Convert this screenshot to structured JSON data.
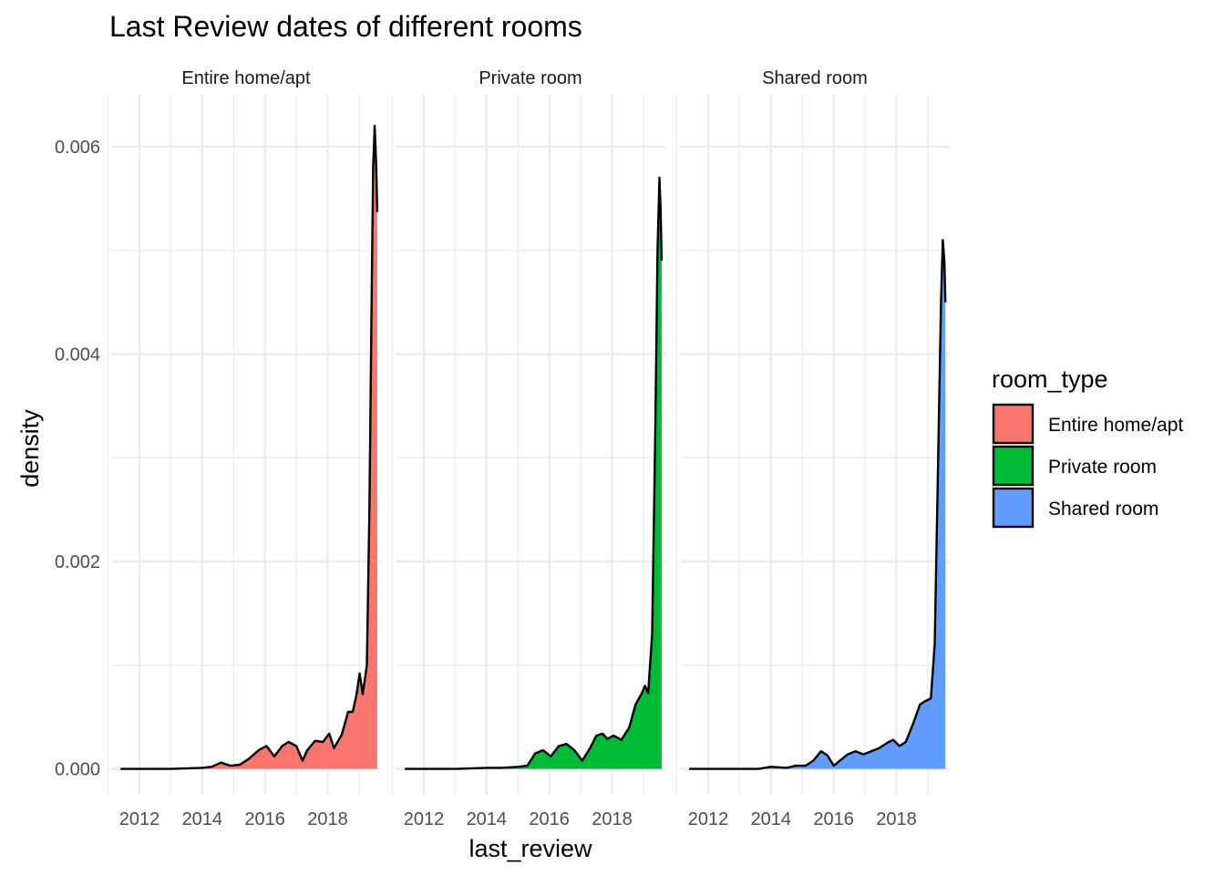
{
  "chart_data": {
    "type": "area",
    "title": "Last Review dates of different rooms",
    "xlabel": "last_review",
    "ylabel": "density",
    "xlim": [
      2011.1,
      2019.7
    ],
    "ylim": [
      -0.00025,
      0.0065
    ],
    "x_ticks": [
      2012,
      2014,
      2016,
      2018
    ],
    "y_ticks": [
      0.0,
      0.002,
      0.004,
      0.006
    ],
    "y_tick_labels": [
      "0.000",
      "0.002",
      "0.004",
      "0.006"
    ],
    "grid": true,
    "legend": {
      "title": "room_type",
      "position": "right",
      "items": [
        "Entire home/apt",
        "Private room",
        "Shared room"
      ]
    },
    "series": [
      {
        "name": "Entire home/apt",
        "color": "#F8766D",
        "x": [
          2011.4,
          2012.0,
          2013.0,
          2014.0,
          2014.3,
          2014.6,
          2014.9,
          2015.2,
          2015.5,
          2015.8,
          2016.05,
          2016.3,
          2016.55,
          2016.75,
          2017.0,
          2017.2,
          2017.35,
          2017.6,
          2017.85,
          2018.05,
          2018.2,
          2018.45,
          2018.65,
          2018.8,
          2018.92,
          2019.02,
          2019.12,
          2019.25,
          2019.33,
          2019.4,
          2019.45,
          2019.5,
          2019.55,
          2019.58
        ],
        "y": [
          0.0,
          0.0,
          0.0,
          1e-05,
          2e-05,
          6e-05,
          3e-05,
          4e-05,
          0.0001,
          0.00018,
          0.00022,
          0.00012,
          0.00022,
          0.00026,
          0.00022,
          8e-05,
          0.00018,
          0.00027,
          0.00026,
          0.00034,
          0.0002,
          0.00033,
          0.00055,
          0.00055,
          0.00072,
          0.00092,
          0.00072,
          0.001,
          0.0025,
          0.0045,
          0.0058,
          0.0062,
          0.0058,
          0.00537
        ]
      },
      {
        "name": "Private room",
        "color": "#00BA38",
        "x": [
          2011.4,
          2012.0,
          2013.0,
          2014.0,
          2014.5,
          2015.0,
          2015.3,
          2015.55,
          2015.8,
          2016.05,
          2016.3,
          2016.55,
          2016.8,
          2017.05,
          2017.3,
          2017.5,
          2017.7,
          2017.85,
          2018.05,
          2018.3,
          2018.55,
          2018.75,
          2018.95,
          2019.05,
          2019.15,
          2019.28,
          2019.38,
          2019.45,
          2019.51,
          2019.55,
          2019.58
        ],
        "y": [
          0.0,
          0.0,
          0.0,
          1e-05,
          1e-05,
          2e-05,
          3e-05,
          0.00015,
          0.00018,
          0.00012,
          0.00022,
          0.00024,
          0.00018,
          8e-05,
          0.0002,
          0.00032,
          0.00034,
          0.00029,
          0.00032,
          0.00028,
          0.0004,
          0.00062,
          0.00073,
          0.0008,
          0.00073,
          0.0013,
          0.0033,
          0.005,
          0.0057,
          0.0054,
          0.0049
        ]
      },
      {
        "name": "Shared room",
        "color": "#619CFF",
        "x": [
          2011.4,
          2012.0,
          2013.0,
          2013.6,
          2014.0,
          2014.5,
          2014.8,
          2015.1,
          2015.35,
          2015.6,
          2015.8,
          2016.0,
          2016.2,
          2016.45,
          2016.7,
          2016.95,
          2017.2,
          2017.45,
          2017.7,
          2017.9,
          2018.1,
          2018.3,
          2018.55,
          2018.75,
          2018.9,
          2019.1,
          2019.22,
          2019.32,
          2019.42,
          2019.48,
          2019.53,
          2019.56
        ],
        "y": [
          0.0,
          0.0,
          0.0,
          0.0,
          2e-05,
          1e-05,
          3e-05,
          3e-05,
          8e-05,
          0.00017,
          0.00013,
          3e-05,
          8e-05,
          0.00014,
          0.00017,
          0.00014,
          0.00017,
          0.0002,
          0.00025,
          0.00028,
          0.00022,
          0.00026,
          0.00045,
          0.00062,
          0.00065,
          0.00068,
          0.0012,
          0.0028,
          0.0045,
          0.0051,
          0.0049,
          0.0045
        ]
      }
    ]
  }
}
